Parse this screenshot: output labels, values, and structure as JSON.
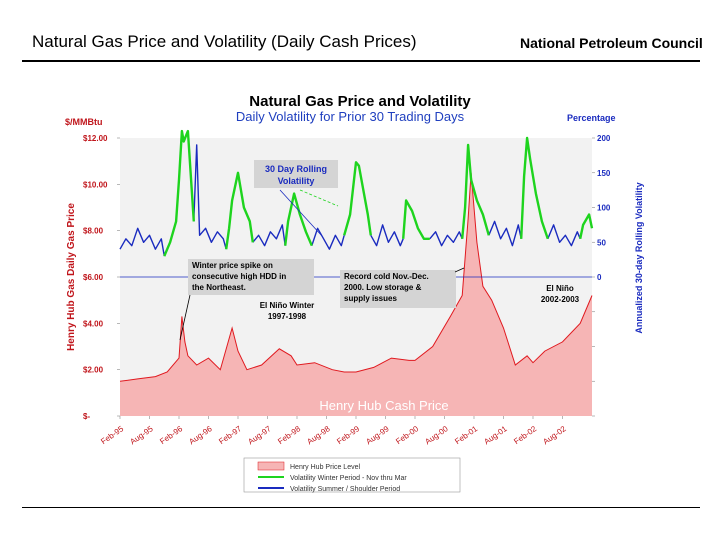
{
  "slide": {
    "title": "Natural Gas Price and Volatility (Daily Cash Prices)",
    "organization": "National Petroleum Council"
  },
  "colors": {
    "price_fill": "#f6b5b5",
    "price_line": "#e0191f",
    "winter": "#1ed41e",
    "summer": "#1a2bbf",
    "plot_bg": "#f2f2f2",
    "label_box": "#d4d4d4"
  },
  "chart_data": {
    "type": "area",
    "title": "Natural Gas Price and Volatility",
    "subtitle": "Daily Volatility for Prior 30 Trading Days",
    "y_left_label": "Henry Hub Gas Daily Gas Price",
    "y_left_unit": "$/MMBtu",
    "y_left_ticks": [
      "$12.00",
      "$10.00",
      "$8.00",
      "$6.00",
      "$4.00",
      "$2.00",
      "$-"
    ],
    "y_left_range": [
      0,
      12
    ],
    "y_right_label": "Annualized 30-day Rolling Volatility",
    "y_right_unit": "Percentage",
    "y_right_ticks": [
      "200",
      "150",
      "100",
      "50",
      "0"
    ],
    "y_right_range": [
      -200,
      200
    ],
    "x_ticks": [
      "Feb-95",
      "Aug-95",
      "Feb-96",
      "Aug-96",
      "Feb-97",
      "Aug-97",
      "Feb-98",
      "Aug-98",
      "Feb-99",
      "Aug-99",
      "Feb-00",
      "Aug-00",
      "Feb-01",
      "Aug-01",
      "Feb-02",
      "Aug-02"
    ],
    "x_range": [
      1995.0,
      2003.0
    ],
    "series": [
      {
        "name": "Henry Hub Price Level",
        "x": [
          1995.0,
          1995.3,
          1995.6,
          1995.8,
          1996.0,
          1996.05,
          1996.1,
          1996.15,
          1996.3,
          1996.5,
          1996.7,
          1996.9,
          1997.0,
          1997.15,
          1997.4,
          1997.7,
          1997.9,
          1998.0,
          1998.3,
          1998.6,
          1998.8,
          1999.0,
          1999.3,
          1999.6,
          1999.9,
          2000.0,
          2000.3,
          2000.6,
          2000.8,
          2000.9,
          2000.95,
          2001.0,
          2001.05,
          2001.15,
          2001.3,
          2001.5,
          2001.7,
          2001.9,
          2002.0,
          2002.2,
          2002.5,
          2002.8,
          2003.0
        ],
        "y": [
          1.5,
          1.6,
          1.7,
          1.9,
          2.5,
          4.3,
          3.2,
          2.6,
          2.2,
          2.5,
          2.0,
          3.8,
          2.8,
          2.0,
          2.2,
          2.9,
          2.6,
          2.2,
          2.3,
          2.0,
          1.9,
          1.9,
          2.1,
          2.5,
          2.4,
          2.4,
          3.0,
          4.3,
          5.2,
          8.5,
          10.5,
          9.0,
          7.5,
          5.6,
          5.0,
          3.8,
          2.2,
          2.6,
          2.3,
          2.8,
          3.2,
          4.0,
          5.2
        ]
      },
      {
        "name": "Volatility Winter Period - Nov thru Mar",
        "segments": [
          {
            "x": [
              1995.75,
              1995.85,
              1995.95,
              1996.0,
              1996.05,
              1996.08,
              1996.15,
              1996.25
            ],
            "y": [
              30,
              50,
              80,
              140,
              210,
              195,
              215,
              80
            ]
          },
          {
            "x": [
              1996.8,
              1996.85,
              1996.9,
              1997.0,
              1997.1,
              1997.2,
              1997.25
            ],
            "y": [
              40,
              70,
              110,
              150,
              100,
              80,
              50
            ]
          },
          {
            "x": [
              1997.8,
              1997.85,
              1997.95,
              1998.05,
              1998.15,
              1998.25
            ],
            "y": [
              45,
              80,
              120,
              90,
              65,
              45
            ]
          },
          {
            "x": [
              1998.8,
              1998.9,
              1999.0,
              1999.05,
              1999.2,
              1999.25
            ],
            "y": [
              60,
              90,
              165,
              160,
              90,
              60
            ]
          },
          {
            "x": [
              1999.8,
              1999.85,
              1999.95,
              2000.05,
              2000.15,
              2000.25
            ],
            "y": [
              55,
              110,
              95,
              70,
              55,
              55
            ]
          },
          {
            "x": [
              2000.8,
              2000.85,
              2000.9,
              2000.95,
              2001.05,
              2001.15,
              2001.25
            ],
            "y": [
              55,
              100,
              190,
              140,
              110,
              90,
              60
            ]
          },
          {
            "x": [
              2001.8,
              2001.85,
              2001.9,
              2001.95,
              2002.05,
              2002.15,
              2002.25
            ],
            "y": [
              55,
              145,
              200,
              170,
              120,
              80,
              55
            ]
          },
          {
            "x": [
              2002.8,
              2002.85,
              2002.95,
              2003.0
            ],
            "y": [
              55,
              75,
              90,
              70
            ]
          }
        ]
      },
      {
        "name": "Volatility Summer / Shoulder Period",
        "segments": [
          {
            "x": [
              1995.0,
              1995.1,
              1995.2,
              1995.3,
              1995.4,
              1995.5,
              1995.6,
              1995.7,
              1995.75
            ],
            "y": [
              40,
              55,
              45,
              70,
              50,
              60,
              40,
              55,
              30
            ]
          },
          {
            "x": [
              1996.25,
              1996.3,
              1996.35,
              1996.45,
              1996.55,
              1996.65,
              1996.75,
              1996.8
            ],
            "y": [
              80,
              190,
              60,
              70,
              50,
              65,
              55,
              40
            ]
          },
          {
            "x": [
              1997.25,
              1997.35,
              1997.45,
              1997.55,
              1997.65,
              1997.75,
              1997.8
            ],
            "y": [
              50,
              60,
              45,
              65,
              55,
              75,
              45
            ]
          },
          {
            "x": [
              1998.25,
              1998.35,
              1998.45,
              1998.55,
              1998.65,
              1998.75,
              1998.8
            ],
            "y": [
              45,
              70,
              55,
              40,
              60,
              45,
              60
            ]
          },
          {
            "x": [
              1999.25,
              1999.35,
              1999.45,
              1999.55,
              1999.65,
              1999.75,
              1999.8
            ],
            "y": [
              60,
              45,
              75,
              50,
              65,
              45,
              55
            ]
          },
          {
            "x": [
              2000.25,
              2000.35,
              2000.45,
              2000.55,
              2000.65,
              2000.75,
              2000.8
            ],
            "y": [
              55,
              65,
              45,
              60,
              50,
              65,
              55
            ]
          },
          {
            "x": [
              2001.25,
              2001.35,
              2001.45,
              2001.55,
              2001.65,
              2001.75,
              2001.8
            ],
            "y": [
              60,
              80,
              55,
              70,
              45,
              75,
              55
            ]
          },
          {
            "x": [
              2002.25,
              2002.35,
              2002.45,
              2002.55,
              2002.65,
              2002.75,
              2002.8
            ],
            "y": [
              55,
              75,
              50,
              60,
              45,
              65,
              55
            ]
          }
        ]
      }
    ],
    "annotations": [
      {
        "text": "30 Day Rolling Volatility",
        "lines": [
          "30 Day Rolling",
          "Volatility"
        ]
      },
      {
        "text": "Winter price spike on consecutive high HDD in the Northeast.",
        "lines": [
          "Winter price spike on",
          "consecutive high HDD in",
          "the Northeast."
        ]
      },
      {
        "text": "El Niño Winter 1997-1998",
        "lines": [
          "El Niño Winter",
          "1997-1998"
        ]
      },
      {
        "text": "Record cold Nov.-Dec. 2000. Low storage & supply issues",
        "lines": [
          "Record cold Nov.-Dec.",
          "2000.  Low storage &",
          "supply issues"
        ]
      },
      {
        "text": "El Niño 2002-2003",
        "lines": [
          "El Niño",
          "2002-2003"
        ]
      },
      {
        "text": "Henry Hub Cash Price",
        "lines": [
          "Henry Hub Cash Price"
        ]
      }
    ],
    "legend_position": "bottom-center",
    "grid": false
  }
}
